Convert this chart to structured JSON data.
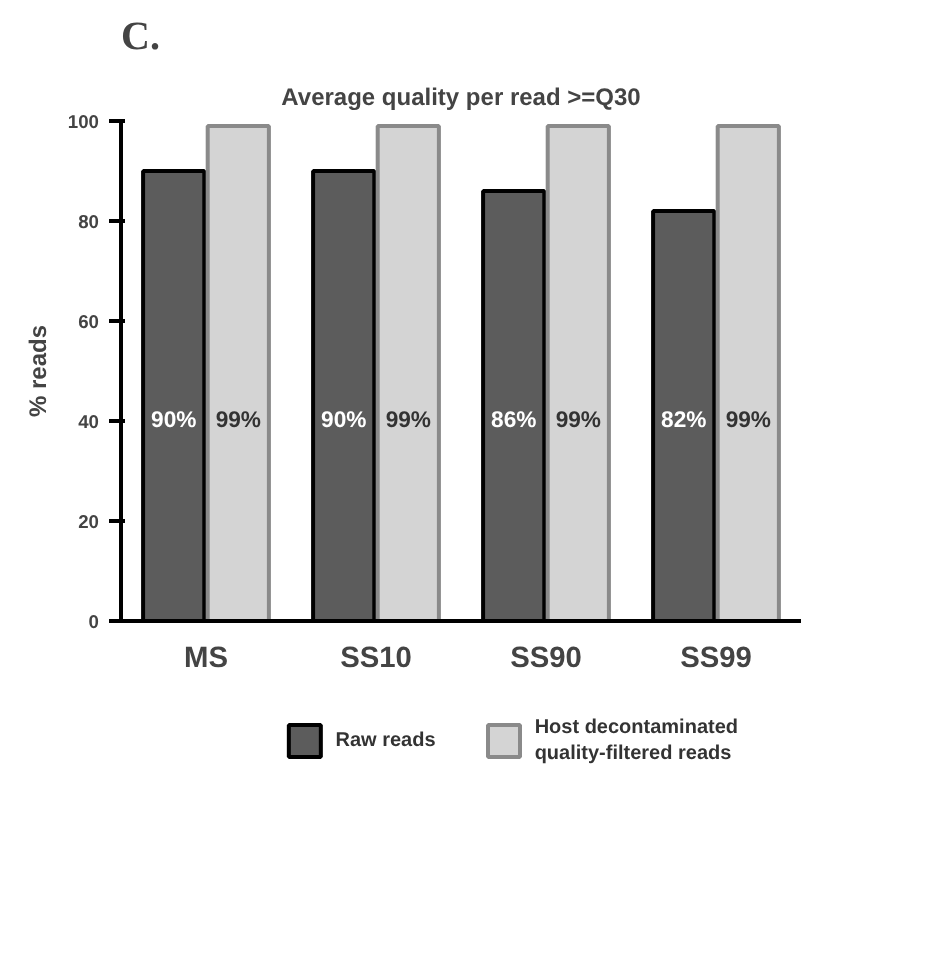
{
  "chart_data": {
    "type": "bar",
    "title": "Average quality per read >=Q30",
    "ylabel": "% reads",
    "categories": [
      "MS",
      "SS10",
      "SS90",
      "SS99"
    ],
    "series": [
      {
        "name": "Raw reads",
        "color": "#5c5c5c",
        "values": [
          90,
          90,
          86,
          82
        ],
        "value_labels": [
          "90%",
          "90%",
          "86%",
          "82%"
        ]
      },
      {
        "name": "Host decontaminated quality-filtered reads",
        "color": "#d4d4d4",
        "values": [
          99,
          99,
          99,
          99
        ],
        "value_labels": [
          "99%",
          "99%",
          "99%",
          "99%"
        ]
      }
    ],
    "ylim": [
      0,
      100
    ],
    "yticks": [
      0,
      20,
      40,
      60,
      80,
      100
    ],
    "grid": false,
    "legend": "bottom",
    "annotations": [
      "C."
    ]
  }
}
